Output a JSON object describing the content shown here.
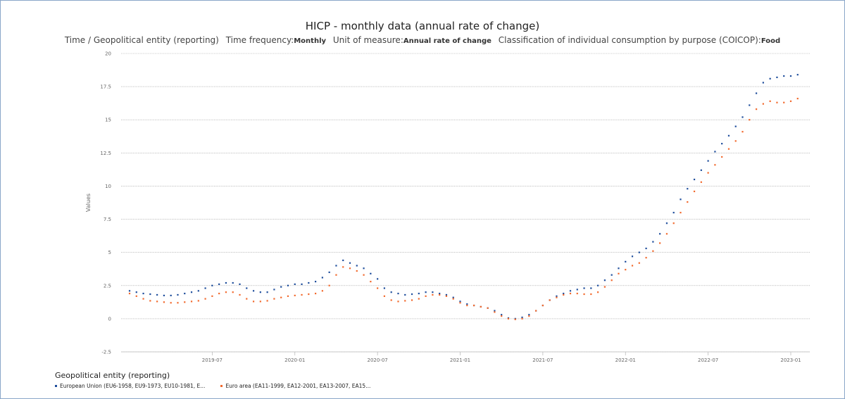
{
  "title": "HICP - monthly data (annual rate of change)",
  "subtitle": {
    "dim1": "Time / Geopolitical entity (reporting)",
    "freq_label": "Time frequency:",
    "freq_value": "Monthly",
    "unit_label": "Unit of measure:",
    "unit_value": "Annual rate of change",
    "coicop_label": "Classification of individual consumption by purpose (COICOP):",
    "coicop_value": "Food"
  },
  "legend": {
    "title": "Geopolitical entity (reporting)",
    "items": [
      "European Union (EU6-1958, EU9-1973, EU10-1981, E...",
      "Euro area (EA11-1999, EA12-2001, EA13-2007, EA15..."
    ]
  },
  "chart_data": {
    "type": "scatter",
    "title": "HICP - monthly data (annual rate of change)",
    "ylabel": "Values",
    "xlabel": "",
    "ylim": [
      -2.5,
      20
    ],
    "yticks": [
      "-2.5",
      "0",
      "2.5",
      "5",
      "7.5",
      "10",
      "12.5",
      "15",
      "17.5",
      "20"
    ],
    "x_ticks": [
      "2019-07",
      "2020-01",
      "2020-07",
      "2021-01",
      "2021-07",
      "2022-01",
      "2022-07",
      "2023-01"
    ],
    "x_start": "2019-01",
    "grid": "horizontal",
    "legend_position": "bottom-left",
    "series": [
      {
        "name": "European Union (EU6-1958, EU9-1973, EU10-1981, E...",
        "color": "#1f4e9c",
        "points": [
          [
            "2019-01",
            2.1
          ],
          [
            "2019-01",
            2.0
          ],
          [
            "2019-02",
            1.9
          ],
          [
            "2019-02",
            1.85
          ],
          [
            "2019-03",
            1.8
          ],
          [
            "2019-03",
            1.75
          ],
          [
            "2019-04",
            1.75
          ],
          [
            "2019-04",
            1.8
          ],
          [
            "2019-05",
            1.9
          ],
          [
            "2019-05",
            2.0
          ],
          [
            "2019-06",
            2.1
          ],
          [
            "2019-06",
            2.3
          ],
          [
            "2019-07",
            2.5
          ],
          [
            "2019-07",
            2.6
          ],
          [
            "2019-08",
            2.7
          ],
          [
            "2019-08",
            2.7
          ],
          [
            "2019-09",
            2.6
          ],
          [
            "2019-09",
            2.3
          ],
          [
            "2019-10",
            2.1
          ],
          [
            "2019-10",
            2.0
          ],
          [
            "2019-11",
            2.0
          ],
          [
            "2019-11",
            2.2
          ],
          [
            "2019-12",
            2.4
          ],
          [
            "2019-12",
            2.5
          ],
          [
            "2020-01",
            2.6
          ],
          [
            "2020-01",
            2.6
          ],
          [
            "2020-02",
            2.7
          ],
          [
            "2020-02",
            2.8
          ],
          [
            "2020-03",
            3.1
          ],
          [
            "2020-03",
            3.5
          ],
          [
            "2020-04",
            4.0
          ],
          [
            "2020-04",
            4.4
          ],
          [
            "2020-05",
            4.2
          ],
          [
            "2020-05",
            4.0
          ],
          [
            "2020-06",
            3.8
          ],
          [
            "2020-06",
            3.4
          ],
          [
            "2020-07",
            3.0
          ],
          [
            "2020-07",
            2.3
          ],
          [
            "2020-08",
            2.0
          ],
          [
            "2020-08",
            1.9
          ],
          [
            "2020-09",
            1.8
          ],
          [
            "2020-09",
            1.85
          ],
          [
            "2020-10",
            1.9
          ],
          [
            "2020-10",
            2.0
          ],
          [
            "2020-11",
            2.0
          ],
          [
            "2020-11",
            1.9
          ],
          [
            "2020-12",
            1.8
          ],
          [
            "2020-12",
            1.6
          ],
          [
            "2021-01",
            1.3
          ],
          [
            "2021-01",
            1.1
          ],
          [
            "2021-02",
            1.0
          ],
          [
            "2021-02",
            0.9
          ],
          [
            "2021-03",
            0.8
          ],
          [
            "2021-03",
            0.6
          ],
          [
            "2021-04",
            0.3
          ],
          [
            "2021-04",
            0.05
          ],
          [
            "2021-05",
            0.0
          ],
          [
            "2021-05",
            0.1
          ],
          [
            "2021-06",
            0.3
          ],
          [
            "2021-06",
            0.6
          ],
          [
            "2021-07",
            1.0
          ],
          [
            "2021-07",
            1.4
          ],
          [
            "2021-08",
            1.7
          ],
          [
            "2021-08",
            1.9
          ],
          [
            "2021-09",
            2.1
          ],
          [
            "2021-09",
            2.2
          ],
          [
            "2021-10",
            2.3
          ],
          [
            "2021-10",
            2.3
          ],
          [
            "2021-11",
            2.5
          ],
          [
            "2021-11",
            2.9
          ],
          [
            "2021-12",
            3.3
          ],
          [
            "2021-12",
            3.8
          ],
          [
            "2022-01",
            4.3
          ],
          [
            "2022-01",
            4.7
          ],
          [
            "2022-02",
            5.0
          ],
          [
            "2022-02",
            5.3
          ],
          [
            "2022-03",
            5.8
          ],
          [
            "2022-03",
            6.4
          ],
          [
            "2022-04",
            7.2
          ],
          [
            "2022-04",
            8.0
          ],
          [
            "2022-05",
            9.0
          ],
          [
            "2022-05",
            9.8
          ],
          [
            "2022-06",
            10.5
          ],
          [
            "2022-06",
            11.2
          ],
          [
            "2022-07",
            11.9
          ],
          [
            "2022-07",
            12.6
          ],
          [
            "2022-08",
            13.2
          ],
          [
            "2022-08",
            13.8
          ],
          [
            "2022-09",
            14.5
          ],
          [
            "2022-09",
            15.2
          ],
          [
            "2022-10",
            16.1
          ],
          [
            "2022-10",
            17.0
          ],
          [
            "2022-11",
            17.8
          ],
          [
            "2022-11",
            18.1
          ],
          [
            "2022-12",
            18.2
          ],
          [
            "2022-12",
            18.3
          ],
          [
            "2023-01",
            18.3
          ],
          [
            "2023-01",
            18.4
          ]
        ]
      },
      {
        "name": "Euro area (EA11-1999, EA12-2001, EA13-2007, EA15...",
        "color": "#f26a2e",
        "points": [
          [
            "2019-01",
            1.9
          ],
          [
            "2019-01",
            1.7
          ],
          [
            "2019-02",
            1.5
          ],
          [
            "2019-02",
            1.35
          ],
          [
            "2019-03",
            1.3
          ],
          [
            "2019-03",
            1.25
          ],
          [
            "2019-04",
            1.2
          ],
          [
            "2019-04",
            1.2
          ],
          [
            "2019-05",
            1.25
          ],
          [
            "2019-05",
            1.3
          ],
          [
            "2019-06",
            1.35
          ],
          [
            "2019-06",
            1.5
          ],
          [
            "2019-07",
            1.7
          ],
          [
            "2019-07",
            1.9
          ],
          [
            "2019-08",
            2.0
          ],
          [
            "2019-08",
            2.0
          ],
          [
            "2019-09",
            1.8
          ],
          [
            "2019-09",
            1.5
          ],
          [
            "2019-10",
            1.3
          ],
          [
            "2019-10",
            1.3
          ],
          [
            "2019-11",
            1.35
          ],
          [
            "2019-11",
            1.5
          ],
          [
            "2019-12",
            1.6
          ],
          [
            "2019-12",
            1.7
          ],
          [
            "2020-01",
            1.75
          ],
          [
            "2020-01",
            1.8
          ],
          [
            "2020-02",
            1.85
          ],
          [
            "2020-02",
            1.9
          ],
          [
            "2020-03",
            2.1
          ],
          [
            "2020-03",
            2.5
          ],
          [
            "2020-04",
            3.3
          ],
          [
            "2020-04",
            3.9
          ],
          [
            "2020-05",
            3.8
          ],
          [
            "2020-05",
            3.6
          ],
          [
            "2020-06",
            3.3
          ],
          [
            "2020-06",
            2.8
          ],
          [
            "2020-07",
            2.3
          ],
          [
            "2020-07",
            1.7
          ],
          [
            "2020-08",
            1.4
          ],
          [
            "2020-08",
            1.3
          ],
          [
            "2020-09",
            1.35
          ],
          [
            "2020-09",
            1.4
          ],
          [
            "2020-10",
            1.5
          ],
          [
            "2020-10",
            1.7
          ],
          [
            "2020-11",
            1.8
          ],
          [
            "2020-11",
            1.8
          ],
          [
            "2020-12",
            1.7
          ],
          [
            "2020-12",
            1.5
          ],
          [
            "2021-01",
            1.2
          ],
          [
            "2021-01",
            1.0
          ],
          [
            "2021-02",
            1.0
          ],
          [
            "2021-02",
            0.9
          ],
          [
            "2021-03",
            0.8
          ],
          [
            "2021-03",
            0.5
          ],
          [
            "2021-04",
            0.2
          ],
          [
            "2021-04",
            0.0
          ],
          [
            "2021-05",
            -0.05
          ],
          [
            "2021-05",
            0.0
          ],
          [
            "2021-06",
            0.2
          ],
          [
            "2021-06",
            0.6
          ],
          [
            "2021-07",
            1.0
          ],
          [
            "2021-07",
            1.4
          ],
          [
            "2021-08",
            1.6
          ],
          [
            "2021-08",
            1.8
          ],
          [
            "2021-09",
            1.9
          ],
          [
            "2021-09",
            1.9
          ],
          [
            "2021-10",
            1.85
          ],
          [
            "2021-10",
            1.85
          ],
          [
            "2021-11",
            2.0
          ],
          [
            "2021-11",
            2.4
          ],
          [
            "2021-12",
            2.9
          ],
          [
            "2021-12",
            3.4
          ],
          [
            "2022-01",
            3.7
          ],
          [
            "2022-01",
            4.0
          ],
          [
            "2022-02",
            4.2
          ],
          [
            "2022-02",
            4.6
          ],
          [
            "2022-03",
            5.1
          ],
          [
            "2022-03",
            5.7
          ],
          [
            "2022-04",
            6.4
          ],
          [
            "2022-04",
            7.2
          ],
          [
            "2022-05",
            8.0
          ],
          [
            "2022-05",
            8.8
          ],
          [
            "2022-06",
            9.6
          ],
          [
            "2022-06",
            10.3
          ],
          [
            "2022-07",
            11.0
          ],
          [
            "2022-07",
            11.6
          ],
          [
            "2022-08",
            12.2
          ],
          [
            "2022-08",
            12.8
          ],
          [
            "2022-09",
            13.4
          ],
          [
            "2022-09",
            14.1
          ],
          [
            "2022-10",
            15.0
          ],
          [
            "2022-10",
            15.8
          ],
          [
            "2022-11",
            16.2
          ],
          [
            "2022-11",
            16.4
          ],
          [
            "2022-12",
            16.3
          ],
          [
            "2022-12",
            16.3
          ],
          [
            "2023-01",
            16.4
          ],
          [
            "2023-01",
            16.6
          ]
        ]
      }
    ]
  }
}
